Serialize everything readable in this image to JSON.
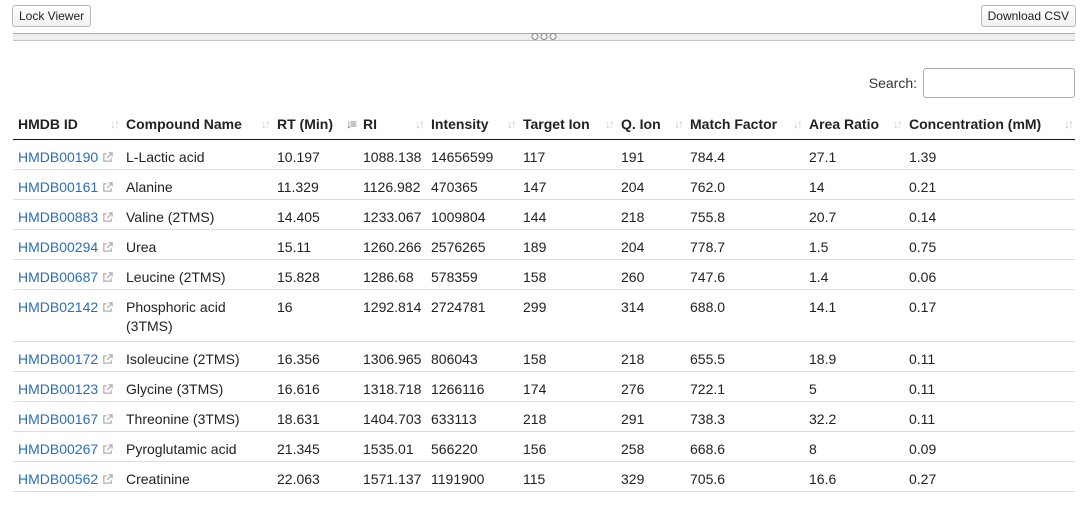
{
  "toolbar": {
    "lock_label": "Lock Viewer",
    "download_label": "Download CSV"
  },
  "search": {
    "label": "Search:",
    "value": "",
    "placeholder": ""
  },
  "table": {
    "columns": [
      {
        "label": "HMDB ID",
        "sort": "none"
      },
      {
        "label": "Compound Name",
        "sort": "none"
      },
      {
        "label": "RT (Min)",
        "sort": "ascending"
      },
      {
        "label": "RI",
        "sort": "none"
      },
      {
        "label": "Intensity",
        "sort": "none"
      },
      {
        "label": "Target Ion",
        "sort": "none"
      },
      {
        "label": "Q. Ion",
        "sort": "none"
      },
      {
        "label": "Match Factor",
        "sort": "none"
      },
      {
        "label": "Area Ratio",
        "sort": "none"
      },
      {
        "label": "Concentration (mM)",
        "sort": "none"
      }
    ],
    "rows": [
      [
        "HMDB00190",
        "L-Lactic acid",
        "10.197",
        "1088.138",
        "14656599",
        "117",
        "191",
        "784.4",
        "27.1",
        "1.39"
      ],
      [
        "HMDB00161",
        "Alanine",
        "11.329",
        "1126.982",
        "470365",
        "147",
        "204",
        "762.0",
        "14",
        "0.21"
      ],
      [
        "HMDB00883",
        "Valine (2TMS)",
        "14.405",
        "1233.067",
        "1009804",
        "144",
        "218",
        "755.8",
        "20.7",
        "0.14"
      ],
      [
        "HMDB00294",
        "Urea",
        "15.11",
        "1260.266",
        "2576265",
        "189",
        "204",
        "778.7",
        "1.5",
        "0.75"
      ],
      [
        "HMDB00687",
        "Leucine (2TMS)",
        "15.828",
        "1286.68",
        "578359",
        "158",
        "260",
        "747.6",
        "1.4",
        "0.06"
      ],
      [
        "HMDB02142",
        "Phosphoric acid (3TMS)",
        "16",
        "1292.814",
        "2724781",
        "299",
        "314",
        "688.0",
        "14.1",
        "0.17"
      ],
      [
        "HMDB00172",
        "Isoleucine (2TMS)",
        "16.356",
        "1306.965",
        "806043",
        "158",
        "218",
        "655.5",
        "18.9",
        "0.11"
      ],
      [
        "HMDB00123",
        "Glycine (3TMS)",
        "16.616",
        "1318.718",
        "1266116",
        "174",
        "276",
        "722.1",
        "5",
        "0.11"
      ],
      [
        "HMDB00167",
        "Threonine (3TMS)",
        "18.631",
        "1404.703",
        "633113",
        "218",
        "291",
        "738.3",
        "32.2",
        "0.11"
      ],
      [
        "HMDB00267",
        "Pyroglutamic acid",
        "21.345",
        "1535.01",
        "566220",
        "156",
        "258",
        "668.6",
        "8",
        "0.09"
      ],
      [
        "HMDB00562",
        "Creatinine",
        "22.063",
        "1571.137",
        "1191900",
        "115",
        "329",
        "705.6",
        "16.6",
        "0.27"
      ]
    ]
  },
  "colors": {
    "link": "#2a6ebb",
    "header_border": "#111111",
    "row_border": "#dddddd"
  },
  "icons": {
    "external_link": "external-link-icon",
    "sort_neutral": "sort-both-icon",
    "sort_ascending": "sort-ascending-icon"
  }
}
